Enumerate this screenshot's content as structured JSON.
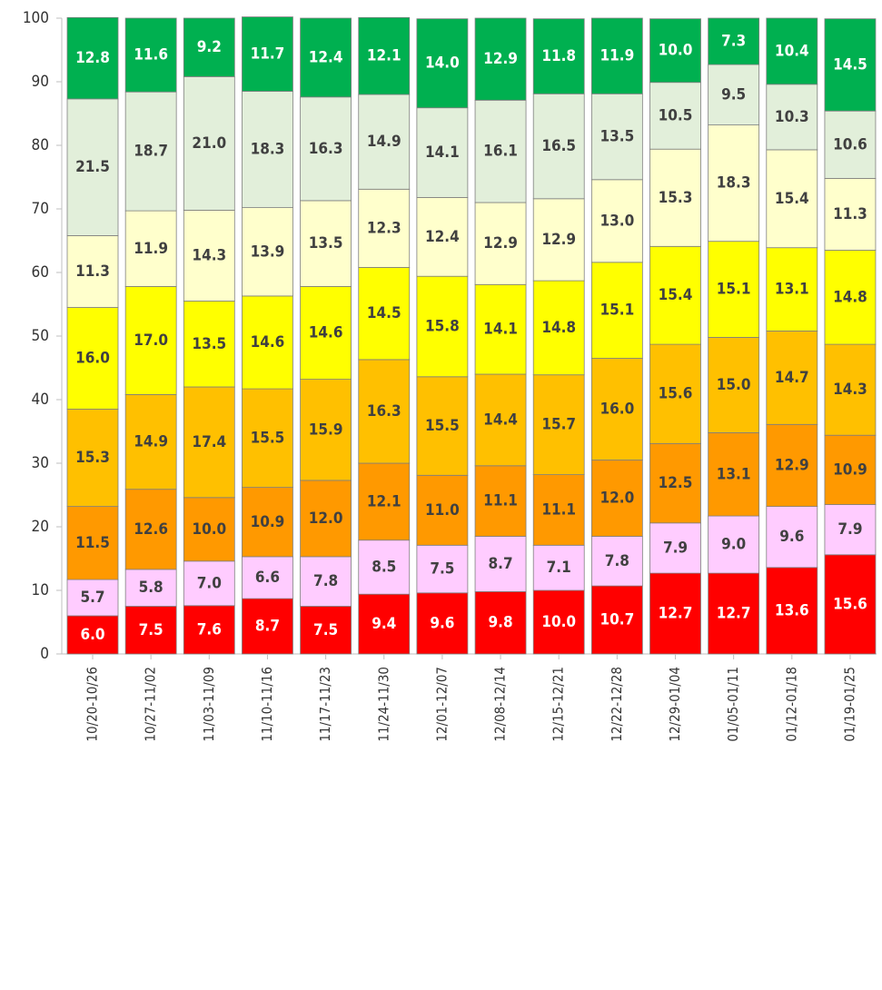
{
  "chart_data": {
    "type": "bar",
    "stacked": true,
    "ylim": [
      0,
      100
    ],
    "yticks": [
      0,
      10,
      20,
      30,
      40,
      50,
      60,
      70,
      80,
      90,
      100
    ],
    "categories": [
      "10/20-10/26",
      "10/27-11/02",
      "11/03-11/09",
      "11/10-11/16",
      "11/17-11/23",
      "11/24-11/30",
      "12/01-12/07",
      "12/08-12/14",
      "12/15-12/21",
      "12/22-12/28",
      "12/29-01/04",
      "01/05-01/11",
      "01/12-01/18",
      "01/19-01/25"
    ],
    "series": [
      {
        "color": "#ff0000",
        "label_color": "#ffffff",
        "values": [
          6.0,
          7.5,
          7.6,
          8.7,
          7.5,
          9.4,
          9.6,
          9.8,
          10.0,
          10.7,
          12.7,
          12.7,
          13.6,
          15.6
        ]
      },
      {
        "color": "#ffccff",
        "label_color": "#404040",
        "values": [
          5.7,
          5.8,
          7.0,
          6.6,
          7.8,
          8.5,
          7.5,
          8.7,
          7.1,
          7.8,
          7.9,
          9.0,
          9.6,
          7.9
        ]
      },
      {
        "color": "#ff9900",
        "label_color": "#404040",
        "values": [
          11.5,
          12.6,
          10.0,
          10.9,
          12.0,
          12.1,
          11.0,
          11.1,
          11.1,
          12.0,
          12.5,
          13.1,
          12.9,
          10.9
        ]
      },
      {
        "color": "#ffc000",
        "label_color": "#404040",
        "values": [
          15.3,
          14.9,
          17.4,
          15.5,
          15.9,
          16.3,
          15.5,
          14.4,
          15.7,
          16.0,
          15.6,
          15.0,
          14.7,
          14.3
        ]
      },
      {
        "color": "#ffff00",
        "label_color": "#404040",
        "values": [
          16.0,
          17.0,
          13.5,
          14.6,
          14.6,
          14.5,
          15.8,
          14.1,
          14.8,
          15.1,
          15.4,
          15.1,
          13.1,
          14.8
        ]
      },
      {
        "color": "#ffffcc",
        "label_color": "#404040",
        "values": [
          11.3,
          11.9,
          14.3,
          13.9,
          13.5,
          12.3,
          12.4,
          12.9,
          12.9,
          13.0,
          15.3,
          18.3,
          15.4,
          11.3
        ]
      },
      {
        "color": "#e2efda",
        "label_color": "#404040",
        "values": [
          21.5,
          18.7,
          21.0,
          18.3,
          16.3,
          14.9,
          14.1,
          16.1,
          16.5,
          13.5,
          10.5,
          9.5,
          10.3,
          10.6
        ]
      },
      {
        "color": "#00b050",
        "label_color": "#ffffff",
        "values": [
          12.8,
          11.6,
          9.2,
          11.7,
          12.4,
          12.1,
          14.0,
          12.9,
          11.8,
          11.9,
          10.0,
          7.3,
          10.4,
          14.5
        ]
      }
    ]
  }
}
